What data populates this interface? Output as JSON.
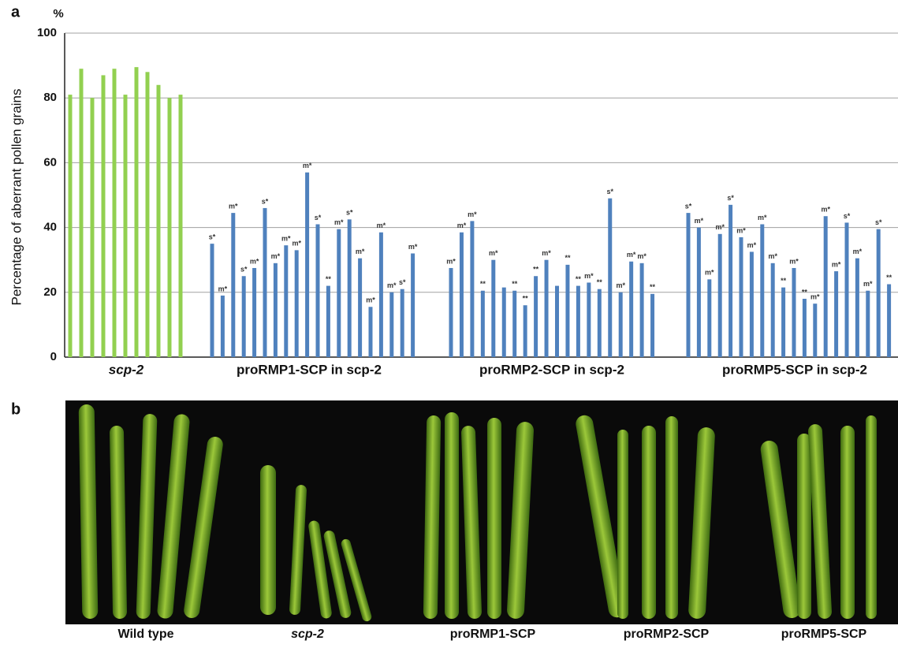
{
  "chart_data": {
    "type": "grouped-bar",
    "panel_label": "a",
    "unit_label": "%",
    "ylabel": "Percentage of aberrant pollen grains",
    "ylim": [
      0,
      100
    ],
    "yticks": [
      0,
      20,
      40,
      60,
      80,
      100
    ],
    "grid": true,
    "series": [
      {
        "name": "scp-2",
        "color": "#92d050",
        "values": [
          81,
          89,
          80,
          87,
          89,
          81,
          89.5,
          88,
          84,
          80,
          81
        ],
        "annotations": [
          null,
          null,
          null,
          null,
          null,
          null,
          null,
          null,
          null,
          null,
          null
        ]
      },
      {
        "name": "proRMP1-SCP in scp-2",
        "color": "#4f81bd",
        "values": [
          35,
          19,
          44.5,
          25,
          27.5,
          46,
          29,
          34.5,
          33,
          57,
          41,
          22,
          39.5,
          42.5,
          30.5,
          15.5,
          38.5,
          20,
          21,
          32
        ],
        "annotations": [
          "s*",
          "m*",
          "m*",
          "s*",
          "m*",
          "s*",
          "m*",
          "m*",
          "m*",
          "m*",
          "s*",
          "**",
          "m*",
          "s*",
          "m*",
          "m*",
          "m*",
          "m*",
          "s*",
          "m*"
        ]
      },
      {
        "name": "proRMP2-SCP in scp-2",
        "color": "#4f81bd",
        "values": [
          27.5,
          38.5,
          42,
          20.5,
          30,
          21.5,
          20.5,
          16,
          25,
          30,
          22,
          28.5,
          22,
          23,
          21,
          49,
          20,
          29.5,
          29,
          19.5
        ],
        "annotations": [
          "m*",
          "m*",
          "m*",
          "**",
          "m*",
          null,
          "**",
          "**",
          "**",
          "m*",
          null,
          "**",
          "**",
          "m*",
          "**",
          "s*",
          "m*",
          "m*",
          "m*",
          "**"
        ]
      },
      {
        "name": "proRMP5-SCP in scp-2",
        "color": "#4f81bd",
        "values": [
          44.5,
          40,
          24,
          38,
          47,
          37,
          32.5,
          41,
          29,
          21.5,
          27.5,
          18,
          16.5,
          43.5,
          26.5,
          41.5,
          30.5,
          20.5,
          39.5,
          22.5
        ],
        "annotations": [
          "s*",
          "m*",
          "m*",
          "m*",
          "s*",
          "m*",
          "m*",
          "m*",
          "m*",
          "**",
          "m*",
          "**",
          "m*",
          "m*",
          "m*",
          "s*",
          "m*",
          "m*",
          "s*",
          "**"
        ]
      }
    ]
  },
  "panel_b": {
    "label": "b",
    "captions": [
      "Wild type",
      "scp-2",
      "proRMP1-SCP",
      "proRMP2-SCP",
      "proRMP5-SCP"
    ]
  }
}
